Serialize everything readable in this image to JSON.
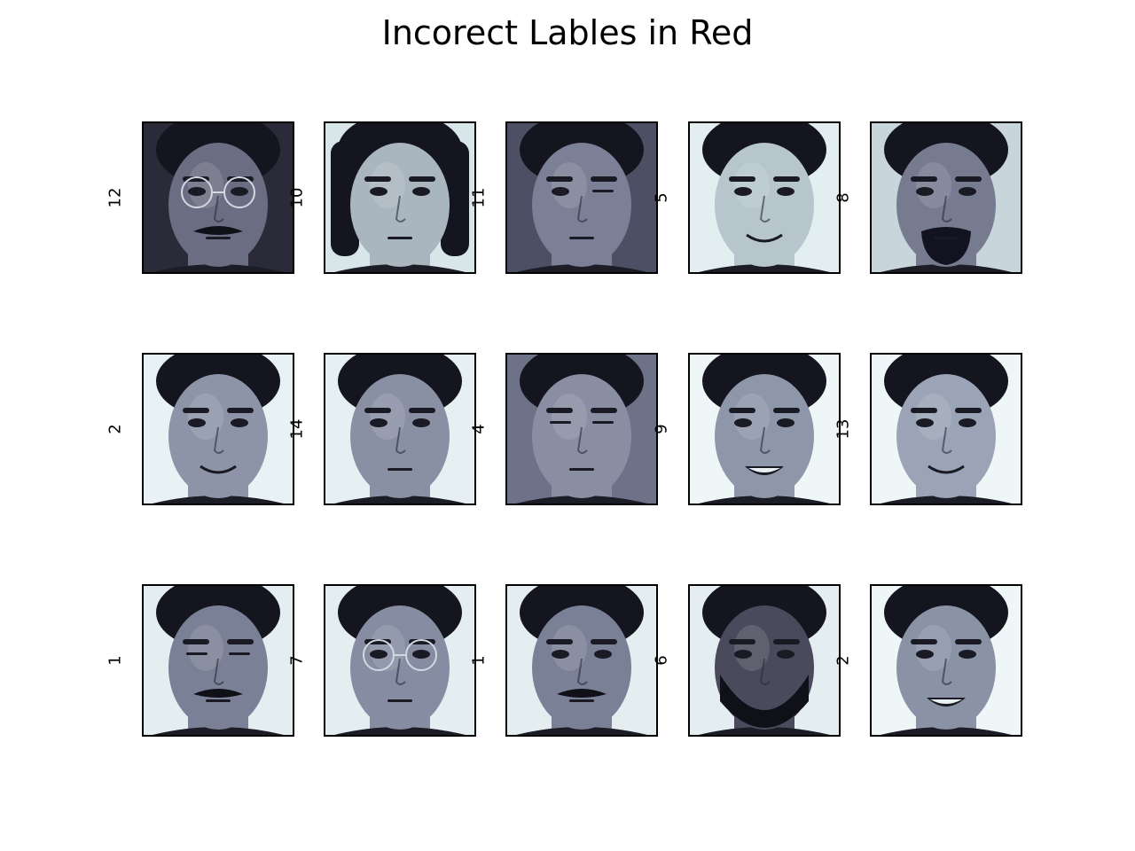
{
  "figure": {
    "title": "Incorect Lables in Red",
    "colormap": "bone",
    "label_color": "#000000",
    "rows": [
      {
        "panels": [
          {
            "label": "12",
            "skin_tone": "#6b6e82",
            "background_tone": "#2a2a38",
            "features": [
              "glasses",
              "mustache"
            ]
          },
          {
            "label": "10",
            "skin_tone": "#a9b6c0",
            "background_tone": "#d8e6ea",
            "features": [
              "bob-hair"
            ]
          },
          {
            "label": "11",
            "skin_tone": "#7c8096",
            "background_tone": "#4d4f64",
            "features": [
              "wink"
            ]
          },
          {
            "label": "5",
            "skin_tone": "#b6c6cc",
            "background_tone": "#e2eef0",
            "features": [
              "smile"
            ]
          },
          {
            "label": "8",
            "skin_tone": "#777b90",
            "background_tone": "#c8d6dc",
            "features": [
              "beard"
            ]
          }
        ]
      },
      {
        "panels": [
          {
            "label": "2",
            "skin_tone": "#8d94a8",
            "background_tone": "#e8f2f4",
            "features": [
              "smile"
            ]
          },
          {
            "label": "14",
            "skin_tone": "#8a90a4",
            "background_tone": "#e6f0f2",
            "features": []
          },
          {
            "label": "4",
            "skin_tone": "#8a8ea2",
            "background_tone": "#6e7288",
            "features": [
              "eyes-closed"
            ]
          },
          {
            "label": "9",
            "skin_tone": "#8e96aa",
            "background_tone": "#eef6f8",
            "features": [
              "teeth-smile"
            ]
          },
          {
            "label": "13",
            "skin_tone": "#9aa4b6",
            "background_tone": "#eef6f8",
            "features": [
              "smile"
            ]
          }
        ]
      },
      {
        "panels": [
          {
            "label": "1",
            "skin_tone": "#7a8096",
            "background_tone": "#e4eef0",
            "features": [
              "eyes-closed",
              "mustache"
            ]
          },
          {
            "label": "7",
            "skin_tone": "#868ca2",
            "background_tone": "#e4eef0",
            "features": [
              "glasses"
            ]
          },
          {
            "label": "1",
            "skin_tone": "#7a8096",
            "background_tone": "#e4eef0",
            "features": [
              "mustache"
            ]
          },
          {
            "label": "6",
            "skin_tone": "#4a4a5c",
            "background_tone": "#e4eef0",
            "features": [
              "full-beard"
            ]
          },
          {
            "label": "2",
            "skin_tone": "#8a92a6",
            "background_tone": "#eef6f8",
            "features": [
              "teeth-smile"
            ]
          }
        ]
      }
    ]
  }
}
